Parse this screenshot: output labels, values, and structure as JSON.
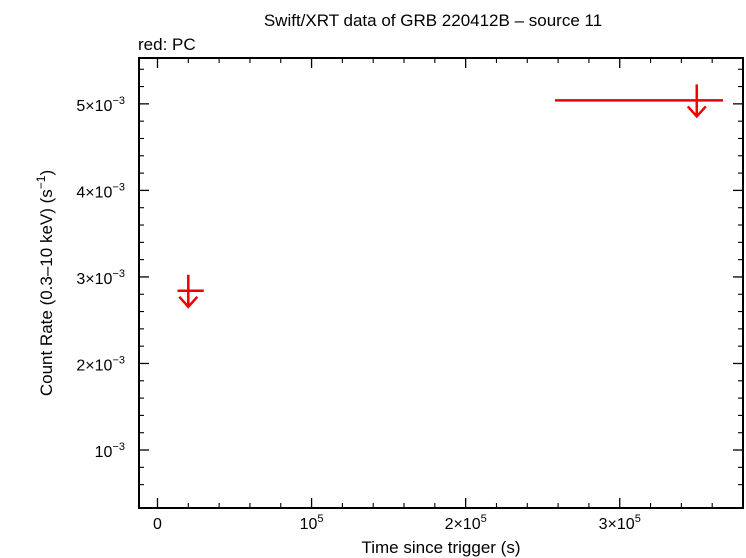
{
  "chart_data": {
    "type": "scatter",
    "title": "Swift/XRT data of GRB 220412B – source 11",
    "subtitle": "red: PC",
    "xlabel": "Time since trigger (s)",
    "ylabel": "Count Rate (0.3–10 keV) (s",
    "ylabel_sup": "−1",
    "ylabel_tail": ")",
    "xlim": [
      -12000,
      380000
    ],
    "ylim": [
      0.00033,
      0.00553
    ],
    "grid": false,
    "x_ticks": [
      {
        "value": 0,
        "base": "0",
        "exp": ""
      },
      {
        "value": 100000,
        "base": "10",
        "exp": "5"
      },
      {
        "value": 200000,
        "base": "2×10",
        "exp": "5"
      },
      {
        "value": 300000,
        "base": "3×10",
        "exp": "5"
      }
    ],
    "y_ticks": [
      {
        "value": 0.001,
        "base": "10",
        "exp": "−3"
      },
      {
        "value": 0.002,
        "base": "2×10",
        "exp": "−3"
      },
      {
        "value": 0.003,
        "base": "3×10",
        "exp": "−3"
      },
      {
        "value": 0.004,
        "base": "4×10",
        "exp": "−3"
      },
      {
        "value": 0.005,
        "base": "5×10",
        "exp": "−3"
      }
    ],
    "series": [
      {
        "name": "PC",
        "color": "#ee0000",
        "marker": "upper-limit",
        "points": [
          {
            "x": 20000,
            "x_lo": 13000,
            "x_hi": 30000,
            "y": 0.00284
          },
          {
            "x": 350000,
            "x_lo": 258000,
            "x_hi": 367000,
            "y": 0.00504
          }
        ]
      }
    ]
  }
}
